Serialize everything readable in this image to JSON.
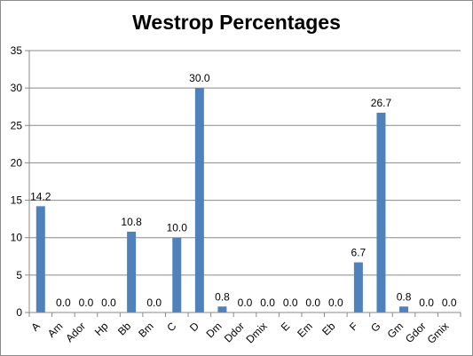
{
  "chart_data": {
    "type": "bar",
    "title": "Westrop Percentages",
    "xlabel": "",
    "ylabel": "",
    "ylim": [
      0,
      35
    ],
    "yticks": [
      0,
      5,
      10,
      15,
      20,
      25,
      30,
      35
    ],
    "grid": true,
    "legend": "none",
    "bar_color": "#4f81bd",
    "categories": [
      "A",
      "Am",
      "Ador",
      "Hp",
      "Bb",
      "Bm",
      "C",
      "D",
      "Dm",
      "Ddor",
      "Dmix",
      "E",
      "Em",
      "Eb",
      "F",
      "G",
      "Gm",
      "Gdor",
      "Gmix"
    ],
    "values": [
      14.2,
      0.0,
      0.0,
      0.0,
      10.8,
      0.0,
      10.0,
      30.0,
      0.8,
      0.0,
      0.0,
      0.0,
      0.0,
      0.0,
      6.7,
      26.7,
      0.8,
      0.0,
      0.0
    ],
    "data_labels": [
      "14.2",
      "0.0",
      "0.0",
      "0.0",
      "10.8",
      "0.0",
      "10.0",
      "30.0",
      "0.8",
      "0.0",
      "0.0",
      "0.0",
      "0.0",
      "0.0",
      "6.7",
      "26.7",
      "0.8",
      "0.0",
      "0.0"
    ]
  }
}
